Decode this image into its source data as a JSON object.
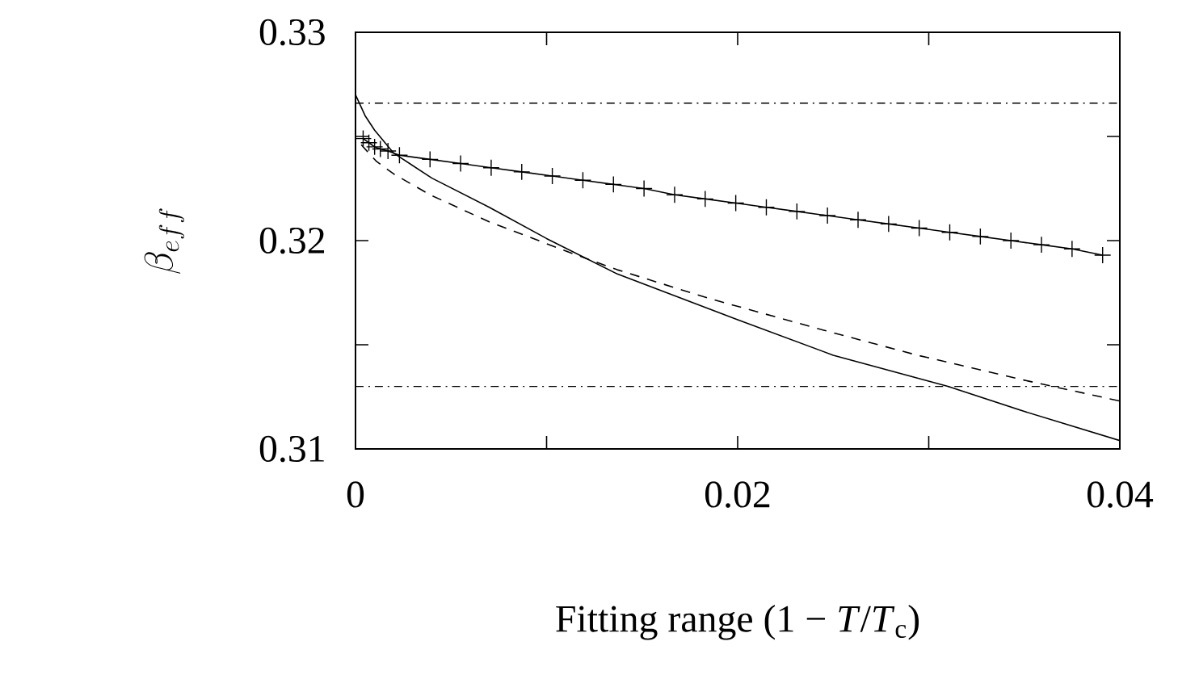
{
  "chart_data": {
    "type": "line",
    "xlabel": "Fitting range (1 − *T*/*T*$_{c}$)",
    "ylabel": "\\beta_{eff}",
    "xlim": [
      0,
      0.04
    ],
    "ylim": [
      0.31,
      0.33
    ],
    "xticks": [
      0,
      {
        "value": 0.01,
        "label": null
      },
      0.02,
      {
        "value": 0.03,
        "label": null
      },
      0.04
    ],
    "yticks": [
      0.31,
      {
        "value": 0.315,
        "label": null
      },
      0.32,
      {
        "value": 0.325,
        "label": null
      },
      0.33
    ],
    "grid": false,
    "series": [
      {
        "color": "#000000",
        "line_style": "solid",
        "marker": "none",
        "x": [
          0,
          0.0005,
          0.001,
          0.002,
          0.004,
          0.007,
          0.01,
          0.0137,
          0.02,
          0.025,
          0.031,
          0.035,
          0.04
        ],
        "values": [
          0.327,
          0.326,
          0.3253,
          0.3242,
          0.323,
          0.3216,
          0.3201,
          0.3184,
          0.3162,
          0.3145,
          0.313,
          0.3118,
          0.3104
        ]
      },
      {
        "color": "#000000",
        "line_style": "dashed",
        "marker": "none",
        "x": [
          0.0003,
          0.0011,
          0.002,
          0.0039,
          0.007,
          0.0113,
          0.0137,
          0.0186,
          0.0245,
          0.0294,
          0.035,
          0.04
        ],
        "values": [
          0.3246,
          0.3238,
          0.3232,
          0.3222,
          0.3209,
          0.3194,
          0.3186,
          0.3172,
          0.3157,
          0.3145,
          0.3133,
          0.3123
        ]
      },
      {
        "color": "#000000",
        "line_style": "solid",
        "marker": "cross",
        "x": [
          0.0004,
          0.0007,
          0.001,
          0.0013,
          0.0017,
          0.0023,
          0.0039,
          0.0055,
          0.0071,
          0.0087,
          0.0103,
          0.0119,
          0.0135,
          0.0151,
          0.0167,
          0.0183,
          0.0199,
          0.0215,
          0.0231,
          0.0247,
          0.0263,
          0.0279,
          0.0295,
          0.0311,
          0.0327,
          0.0343,
          0.0359,
          0.0375,
          0.0391
        ],
        "values": [
          0.3249,
          0.3247,
          0.3245,
          0.3244,
          0.3243,
          0.3241,
          0.3239,
          0.3237,
          0.3235,
          0.3233,
          0.3231,
          0.3229,
          0.3227,
          0.3225,
          0.3222,
          0.322,
          0.3218,
          0.3216,
          0.3214,
          0.3212,
          0.321,
          0.3208,
          0.3206,
          0.3204,
          0.3202,
          0.32,
          0.3198,
          0.3196,
          0.3193
        ]
      }
    ],
    "ref_lines": [
      {
        "axis": "y",
        "value": 0.3266,
        "line_style": "dashdot",
        "color": "#000000"
      },
      {
        "axis": "y",
        "value": 0.313,
        "line_style": "dashdot",
        "color": "#000000"
      }
    ]
  }
}
